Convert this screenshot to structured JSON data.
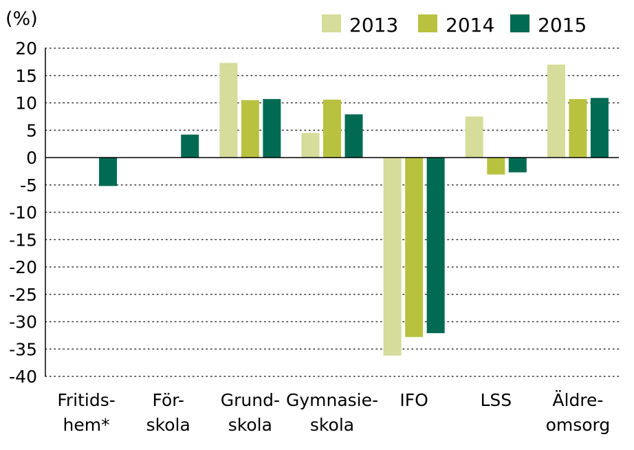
{
  "chart_data": {
    "type": "bar",
    "unit_label": "(%)",
    "categories": [
      [
        "Fritids-",
        "hem*"
      ],
      [
        "För-",
        "skola"
      ],
      [
        "Grund-",
        "skola"
      ],
      [
        "Gymnasie-",
        "skola"
      ],
      [
        "IFO"
      ],
      [
        "LSS"
      ],
      [
        "Äldre-",
        "omsorg"
      ]
    ],
    "series": [
      {
        "name": "2013",
        "color": "#d6dc99",
        "values": [
          null,
          null,
          17.3,
          4.5,
          -36.2,
          7.5,
          17.0
        ]
      },
      {
        "name": "2014",
        "color": "#b8c23f",
        "values": [
          null,
          null,
          10.5,
          10.6,
          -32.8,
          -3.1,
          10.7
        ]
      },
      {
        "name": "2015",
        "color": "#006a52",
        "values": [
          -5.2,
          4.2,
          10.7,
          7.9,
          -32.1,
          -2.7,
          10.9
        ]
      }
    ],
    "ylim": [
      -40,
      20
    ],
    "yticks": [
      20,
      15,
      10,
      5,
      0,
      -5,
      -10,
      -15,
      -20,
      -25,
      -30,
      -35,
      -40
    ],
    "grid": true,
    "legend_position": "top-right"
  }
}
